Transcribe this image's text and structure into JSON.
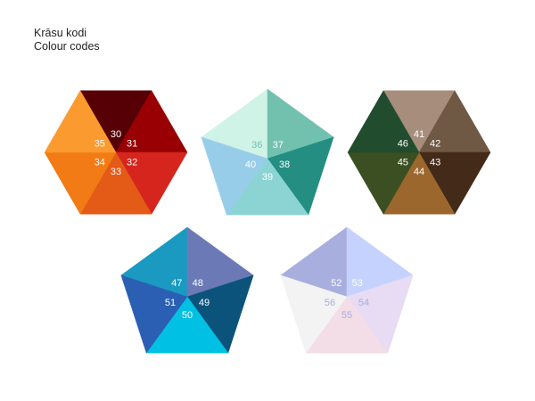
{
  "title": {
    "line1": "Krāsu kodi",
    "line2": "Colour codes"
  },
  "shapes": [
    {
      "kind": "hexagon",
      "segments": [
        {
          "code": "30",
          "color": "#560005",
          "label_color": "#ffffff"
        },
        {
          "code": "31",
          "color": "#980003",
          "label_color": "#ffffff"
        },
        {
          "code": "32",
          "color": "#d6251c",
          "label_color": "#ffffff"
        },
        {
          "code": "33",
          "color": "#e45a17",
          "label_color": "#ffffff"
        },
        {
          "code": "34",
          "color": "#f27b16",
          "label_color": "#ffffff"
        },
        {
          "code": "35",
          "color": "#fb9a2f",
          "label_color": "#ffffff"
        }
      ]
    },
    {
      "kind": "pentagon",
      "segments": [
        {
          "code": "36",
          "color": "#d0f3e7",
          "label_color": "#72c1af"
        },
        {
          "code": "37",
          "color": "#72c1af",
          "label_color": "#ffffff"
        },
        {
          "code": "38",
          "color": "#258e82",
          "label_color": "#ffffff"
        },
        {
          "code": "39",
          "color": "#8cd4d3",
          "label_color": "#ffffff"
        },
        {
          "code": "40",
          "color": "#98cde9",
          "label_color": "#ffffff"
        }
      ]
    },
    {
      "kind": "hexagon",
      "segments": [
        {
          "code": "41",
          "color": "#a78e7c",
          "label_color": "#ffffff"
        },
        {
          "code": "42",
          "color": "#6f5844",
          "label_color": "#ffffff"
        },
        {
          "code": "43",
          "color": "#432a19",
          "label_color": "#ffffff"
        },
        {
          "code": "44",
          "color": "#9c672c",
          "label_color": "#ffffff"
        },
        {
          "code": "45",
          "color": "#3c4f22",
          "label_color": "#ffffff"
        },
        {
          "code": "46",
          "color": "#214c2d",
          "label_color": "#ffffff"
        }
      ]
    },
    {
      "kind": "pentagon",
      "segments": [
        {
          "code": "47",
          "color": "#1a9ac1",
          "label_color": "#ffffff"
        },
        {
          "code": "48",
          "color": "#6b7ab6",
          "label_color": "#ffffff"
        },
        {
          "code": "49",
          "color": "#0b537a",
          "label_color": "#ffffff"
        },
        {
          "code": "50",
          "color": "#00c0e4",
          "label_color": "#ffffff"
        },
        {
          "code": "51",
          "color": "#2a5fb3",
          "label_color": "#ffffff"
        }
      ]
    },
    {
      "kind": "pentagon",
      "segments": [
        {
          "code": "52",
          "color": "#a8aede",
          "label_color": "#ffffff"
        },
        {
          "code": "53",
          "color": "#c6d2fe",
          "label_color": "#ffffff"
        },
        {
          "code": "54",
          "color": "#e7dcf3",
          "label_color": "#a8aede"
        },
        {
          "code": "55",
          "color": "#f3dde7",
          "label_color": "#a8aede"
        },
        {
          "code": "56",
          "color": "#f3f3f3",
          "label_color": "#a8aede"
        }
      ]
    }
  ]
}
